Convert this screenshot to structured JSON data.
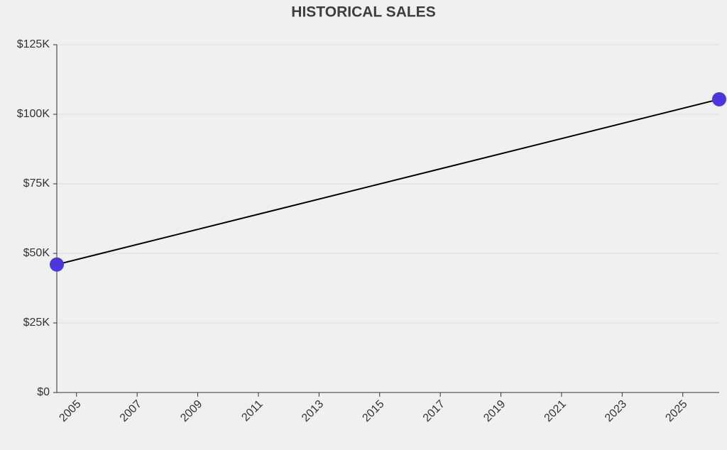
{
  "chart_data": {
    "type": "line",
    "title": "HISTORICAL SALES",
    "x": [
      2004.35,
      2026.2
    ],
    "series": [
      {
        "name": "Sales",
        "color": "#4f35e0",
        "values": [
          46000,
          105400
        ]
      }
    ],
    "xlim": [
      2004.35,
      2026.2
    ],
    "xticks": [
      2005,
      2007,
      2009,
      2011,
      2013,
      2015,
      2017,
      2019,
      2021,
      2023,
      2025
    ],
    "ylim": [
      0,
      125000
    ],
    "yticks": [
      {
        "value": 0,
        "label": "$0"
      },
      {
        "value": 25000,
        "label": "$25K"
      },
      {
        "value": 50000,
        "label": "$50K"
      },
      {
        "value": 75000,
        "label": "$75K"
      },
      {
        "value": 100000,
        "label": "$100K"
      },
      {
        "value": 125000,
        "label": "$125K"
      }
    ],
    "grid": true
  }
}
